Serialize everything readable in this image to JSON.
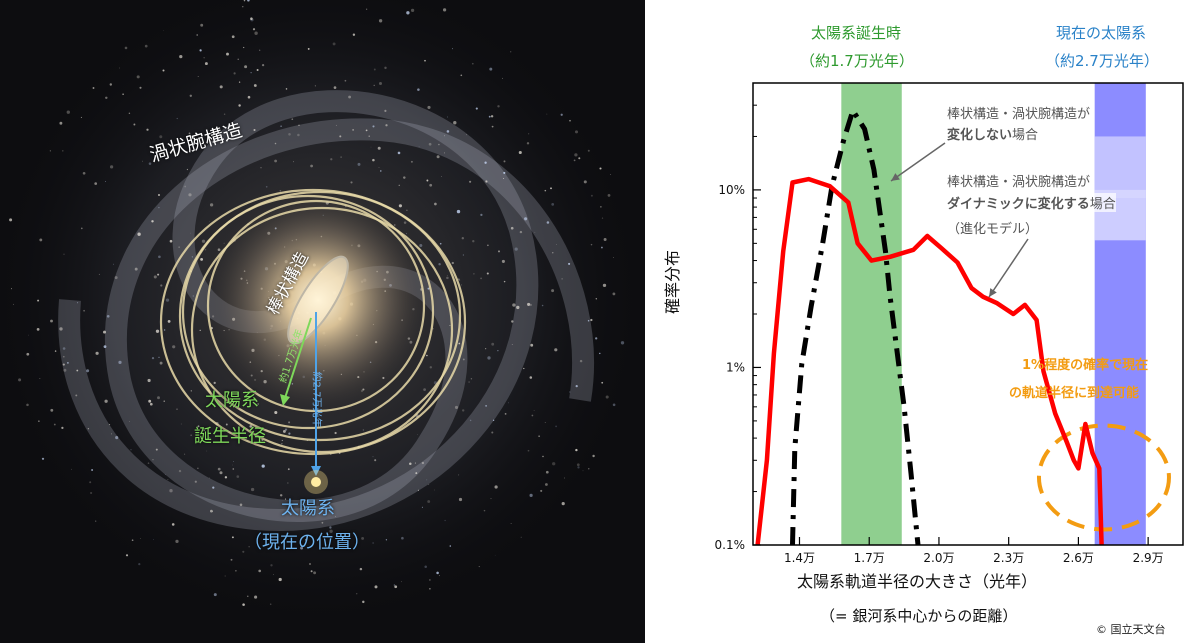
{
  "galaxy": {
    "labels": {
      "spiral_arm": "渦状腕構造",
      "bar": "棒状構造",
      "birth_radius_line1": "太陽系",
      "birth_radius_line2": "誕生半径",
      "birth_distance": "約1.7万光年",
      "current_distance": "約2.7万光年",
      "sun_line1": "太陽系",
      "sun_line2": "（現在の位置）"
    }
  },
  "chart_data": {
    "type": "line",
    "y_scale": "log",
    "ylim": [
      0.1,
      40
    ],
    "xlim": [
      1.2,
      3.05
    ],
    "xlabel_line1": "太陽系軌道半径の大きさ（光年）",
    "xlabel_line2": "（= 銀河系中心からの距離）",
    "ylabel": "確率分布",
    "xticks": [
      "1.4万",
      "1.7万",
      "2.0万",
      "2.3万",
      "2.6万",
      "2.9万"
    ],
    "xtick_values": [
      1.4,
      1.7,
      2.0,
      2.3,
      2.6,
      2.9
    ],
    "yticks": [
      "0.1%",
      "1%",
      "10%"
    ],
    "ytick_values": [
      0.1,
      1,
      10
    ],
    "bands": [
      {
        "label_line1": "太陽系誕生時",
        "label_line2": "（約1.7万光年）",
        "from": 1.58,
        "to": 1.84,
        "color": "#8fcf8f",
        "label_color": "#2e9a2e"
      },
      {
        "label_line1": "現在の太陽系",
        "label_line2": "（約2.7万光年）",
        "from": 2.67,
        "to": 2.89,
        "color": "#8c8cff",
        "label_color": "#2a82c8"
      }
    ],
    "series": [
      {
        "name": "変化しない場合",
        "color": "#000000",
        "style": "dash-dot",
        "points": [
          [
            1.37,
            0.1
          ],
          [
            1.38,
            0.35
          ],
          [
            1.41,
            1.05
          ],
          [
            1.45,
            2.2
          ],
          [
            1.5,
            5.0
          ],
          [
            1.54,
            10.5
          ],
          [
            1.59,
            19.0
          ],
          [
            1.63,
            28.0
          ],
          [
            1.68,
            22.0
          ],
          [
            1.72,
            13.0
          ],
          [
            1.77,
            4.5
          ],
          [
            1.79,
            2.5
          ],
          [
            1.85,
            0.6
          ],
          [
            1.88,
            0.25
          ],
          [
            1.91,
            0.1
          ]
        ]
      },
      {
        "name": "ダイナミックに変化する場合",
        "color": "#ff0000",
        "style": "solid",
        "points": [
          [
            1.22,
            0.1
          ],
          [
            1.26,
            0.3
          ],
          [
            1.29,
            1.2
          ],
          [
            1.33,
            4.5
          ],
          [
            1.37,
            11.0
          ],
          [
            1.44,
            11.5
          ],
          [
            1.53,
            10.5
          ],
          [
            1.61,
            8.5
          ],
          [
            1.65,
            5.0
          ],
          [
            1.71,
            4.0
          ],
          [
            1.79,
            4.2
          ],
          [
            1.89,
            4.6
          ],
          [
            1.95,
            5.5
          ],
          [
            2.01,
            4.7
          ],
          [
            2.08,
            3.9
          ],
          [
            2.14,
            2.8
          ],
          [
            2.19,
            2.5
          ],
          [
            2.25,
            2.3
          ],
          [
            2.32,
            2.0
          ],
          [
            2.37,
            2.25
          ],
          [
            2.42,
            1.85
          ],
          [
            2.45,
            0.95
          ],
          [
            2.5,
            0.55
          ],
          [
            2.55,
            0.38
          ],
          [
            2.58,
            0.3
          ],
          [
            2.6,
            0.27
          ],
          [
            2.63,
            0.48
          ],
          [
            2.66,
            0.33
          ],
          [
            2.69,
            0.27
          ],
          [
            2.7,
            0.1
          ]
        ]
      }
    ],
    "annotations": [
      {
        "text_plain": "棒状構造・渦状腕構造が",
        "text_bold": "変化しない",
        "text_tail": "場合"
      },
      {
        "text_plain": "棒状構造・渦状腕構造が",
        "text_bold": "ダイナミックに変化する",
        "text_tail": "場合",
        "sub": "（進化モデル）"
      }
    ],
    "callout_line1": "1%程度の確率で現在",
    "callout_line2": "の軌道半径に到達可能",
    "callout_color": "#f39c12",
    "credit": "© 国立天文台"
  }
}
